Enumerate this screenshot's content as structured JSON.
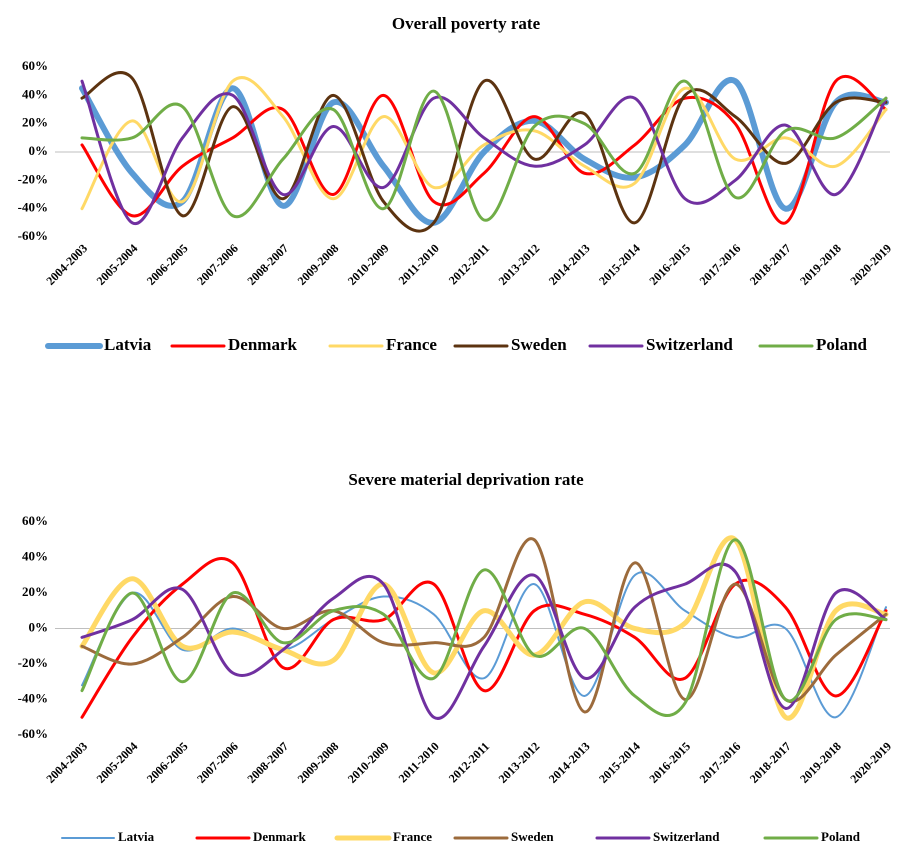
{
  "chart_data": [
    {
      "type": "line",
      "title": "Overall poverty rate",
      "categories": [
        "2004-2003",
        "2005-2004",
        "2006-2005",
        "2007-2006",
        "2008-2007",
        "2009-2008",
        "2010-2009",
        "2011-2010",
        "2012-2011",
        "2013-2012",
        "2014-2013",
        "2015-2014",
        "2016-2015",
        "2017-2016",
        "2018-2017",
        "2019-2018",
        "2020-2019"
      ],
      "ylim": [
        -60,
        60
      ],
      "yticks": [
        {
          "value": -60,
          "label": "-60%"
        },
        {
          "value": -40,
          "label": "-40%"
        },
        {
          "value": -20,
          "label": "-20%"
        },
        {
          "value": 0,
          "label": "0%"
        },
        {
          "value": 20,
          "label": "20%"
        },
        {
          "value": 40,
          "label": "40%"
        },
        {
          "value": 60,
          "label": "60%"
        }
      ],
      "grid": false,
      "legend": "bottom",
      "series": [
        {
          "name": "Latvia",
          "color": "#5b9bd5",
          "values": [
            45,
            -15,
            -35,
            45,
            -38,
            35,
            -10,
            -50,
            0,
            22,
            -5,
            -18,
            5,
            50,
            -40,
            35,
            35
          ]
        },
        {
          "name": "Denmark",
          "color": "#ff0000",
          "values": [
            5,
            -45,
            -10,
            10,
            30,
            -30,
            40,
            -35,
            -15,
            25,
            -15,
            5,
            38,
            20,
            -50,
            50,
            30
          ]
        },
        {
          "name": "France",
          "color": "#ffd966",
          "values": [
            -40,
            22,
            -35,
            50,
            25,
            -33,
            25,
            -25,
            5,
            15,
            -10,
            -22,
            45,
            -5,
            10,
            -10,
            30
          ]
        },
        {
          "name": "Sweden",
          "color": "#5c3310",
          "values": [
            38,
            52,
            -45,
            32,
            -33,
            40,
            -35,
            -50,
            50,
            -5,
            27,
            -50,
            40,
            25,
            -8,
            35,
            35
          ]
        },
        {
          "name": "Switzerland",
          "color": "#7030a0",
          "values": [
            50,
            -50,
            10,
            40,
            -30,
            18,
            -25,
            38,
            10,
            -10,
            5,
            38,
            -33,
            -20,
            19,
            -30,
            38
          ]
        },
        {
          "name": "Poland",
          "color": "#70ad47",
          "values": [
            10,
            10,
            32,
            -45,
            -5,
            30,
            -40,
            43,
            -48,
            18,
            20,
            -15,
            50,
            -32,
            15,
            10,
            38
          ]
        }
      ]
    },
    {
      "type": "line",
      "title": "Severe material deprivation rate",
      "categories": [
        "2004-2003",
        "2005-2004",
        "2006-2005",
        "2007-2006",
        "2008-2007",
        "2009-2008",
        "2010-2009",
        "2011-2010",
        "2012-2011",
        "2013-2012",
        "2014-2013",
        "2015-2014",
        "2016-2015",
        "2017-2016",
        "2018-2017",
        "2019-2018",
        "2020-2019"
      ],
      "ylim": [
        -60,
        60
      ],
      "yticks": [
        {
          "value": -60,
          "label": "-60%"
        },
        {
          "value": -40,
          "label": "-40%"
        },
        {
          "value": -20,
          "label": "-20%"
        },
        {
          "value": 0,
          "label": "0%"
        },
        {
          "value": 20,
          "label": "20%"
        },
        {
          "value": 40,
          "label": "40%"
        },
        {
          "value": 60,
          "label": "60%"
        }
      ],
      "grid": false,
      "legend": "bottom",
      "series": [
        {
          "name": "Latvia",
          "color": "#5b9bd5",
          "values": [
            -32,
            20,
            -12,
            0,
            -12,
            5,
            18,
            8,
            -28,
            25,
            -38,
            30,
            10,
            -5,
            0,
            -50,
            12
          ]
        },
        {
          "name": "Denmark",
          "color": "#ff0000",
          "values": [
            -50,
            -5,
            25,
            37,
            -22,
            5,
            5,
            25,
            -35,
            10,
            8,
            -5,
            -28,
            25,
            12,
            -38,
            10
          ]
        },
        {
          "name": "France",
          "color": "#ffd966",
          "values": [
            -10,
            28,
            -10,
            -2,
            -12,
            -18,
            25,
            -25,
            10,
            -15,
            15,
            0,
            3,
            50,
            -50,
            10,
            8
          ]
        },
        {
          "name": "Sweden",
          "color": "#9c6b3c",
          "values": [
            -10,
            -20,
            -5,
            18,
            0,
            10,
            -8,
            -8,
            -5,
            50,
            -47,
            37,
            -40,
            25,
            -40,
            -15,
            8
          ]
        },
        {
          "name": "Switzerland",
          "color": "#7030a0",
          "values": [
            -5,
            5,
            22,
            -25,
            -12,
            17,
            25,
            -50,
            -10,
            30,
            -28,
            12,
            25,
            32,
            -45,
            20,
            5
          ]
        },
        {
          "name": "Poland",
          "color": "#70ad47",
          "values": [
            -35,
            20,
            -30,
            20,
            -8,
            10,
            8,
            -28,
            33,
            -15,
            0,
            -38,
            -42,
            50,
            -40,
            5,
            5
          ]
        }
      ]
    }
  ]
}
